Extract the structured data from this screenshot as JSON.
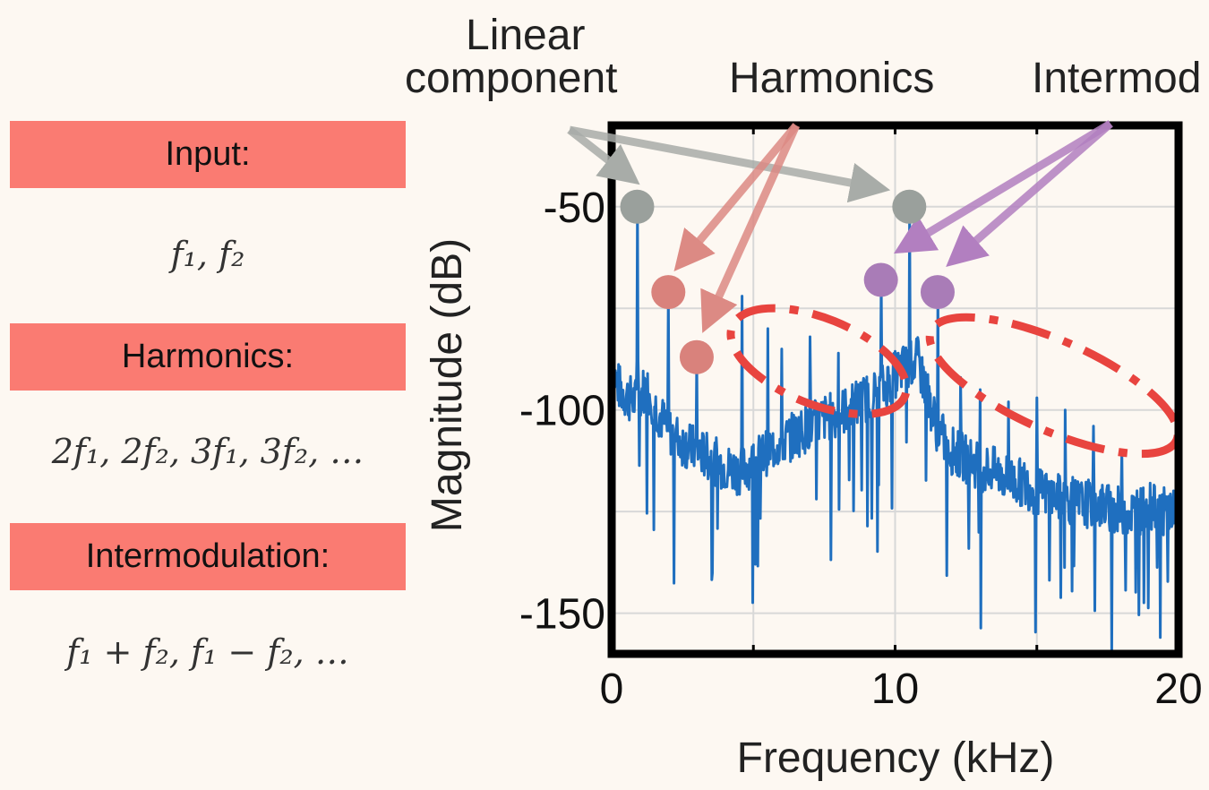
{
  "legend_panel": {
    "input_label": "Input:",
    "input_math": "f₁, f₂",
    "harmonics_label": "Harmonics:",
    "harmonics_math": "2f₁, 2f₂, 3f₁, 3f₂, …",
    "intermod_label": "Intermodulation:",
    "intermod_math": "f₁ + f₂, f₁ − f₂, …"
  },
  "annotations": {
    "linear_line1": "Linear",
    "linear_line2": "component",
    "harmonics": "Harmonics",
    "intermod": "Intermod"
  },
  "colors": {
    "background": "#fdf8f2",
    "label_box": "#fa7b72",
    "trace": "#1f6fbf",
    "linear_marker": "#9aa09c",
    "harmonic_marker": "#d9827c",
    "intermod_marker": "#a97cb7",
    "ellipse": "#e8443f"
  },
  "chart_data": {
    "type": "line",
    "title": "",
    "xlabel": "Frequency (kHz)",
    "ylabel": "Magnitude (dB)",
    "xlim": [
      0,
      20
    ],
    "ylim": [
      -160,
      -30
    ],
    "xticks": [
      0,
      10,
      20
    ],
    "yticks": [
      -50,
      -100,
      -150
    ],
    "grid": true,
    "series": [
      {
        "x": [
          0,
          0.3,
          0.6,
          0.9,
          1.2,
          1.6,
          2.0,
          2.5,
          3.0,
          3.5,
          4.0,
          4.5,
          5.0,
          5.5,
          6.0,
          6.5,
          7.0,
          7.5,
          8.0,
          8.5,
          9.0,
          9.5,
          9.9,
          10.2,
          10.5,
          10.8,
          11.1,
          11.5,
          12.0,
          12.5,
          13.0,
          13.5,
          14.0,
          14.5,
          15.0,
          15.5,
          16.0,
          16.5,
          17.0,
          17.5,
          18.0,
          18.5,
          19.0,
          19.5,
          20.0
        ],
        "y": [
          -90,
          -95,
          -97,
          -98,
          -94,
          -100,
          -105,
          -108,
          -110,
          -112,
          -114,
          -115,
          -113,
          -110,
          -108,
          -106,
          -104,
          -102,
          -101,
          -99,
          -97,
          -95,
          -92,
          -90,
          -89,
          -88,
          -95,
          -105,
          -110,
          -112,
          -114,
          -115,
          -117,
          -118,
          -120,
          -121,
          -122,
          -123,
          -123,
          -124,
          -125,
          -125,
          -124,
          -125,
          -124
        ]
      }
    ],
    "peaks": [
      {
        "x": 0.9,
        "y": -50,
        "kind": "linear"
      },
      {
        "x": 10.5,
        "y": -50,
        "kind": "linear"
      },
      {
        "x": 2.0,
        "y": -71,
        "kind": "harmonic"
      },
      {
        "x": 3.0,
        "y": -87,
        "kind": "harmonic"
      },
      {
        "x": 9.5,
        "y": -68,
        "kind": "intermod"
      },
      {
        "x": 11.5,
        "y": -71,
        "kind": "intermod"
      },
      {
        "x": 4.6,
        "y": -72,
        "kind": "spur"
      },
      {
        "x": 5.5,
        "y": -80,
        "kind": "spur"
      },
      {
        "x": 6.0,
        "y": -85,
        "kind": "spur"
      },
      {
        "x": 7.0,
        "y": -82,
        "kind": "spur"
      },
      {
        "x": 8.0,
        "y": -86,
        "kind": "spur"
      },
      {
        "x": 12.3,
        "y": -92,
        "kind": "spur"
      },
      {
        "x": 13.0,
        "y": -95,
        "kind": "spur"
      },
      {
        "x": 14.0,
        "y": -98,
        "kind": "spur"
      },
      {
        "x": 15.0,
        "y": -97,
        "kind": "spur"
      },
      {
        "x": 16.0,
        "y": -100,
        "kind": "spur"
      },
      {
        "x": 17.0,
        "y": -104,
        "kind": "spur"
      },
      {
        "x": 18.0,
        "y": -110,
        "kind": "spur"
      },
      {
        "x": 19.0,
        "y": -118,
        "kind": "spur"
      }
    ]
  }
}
